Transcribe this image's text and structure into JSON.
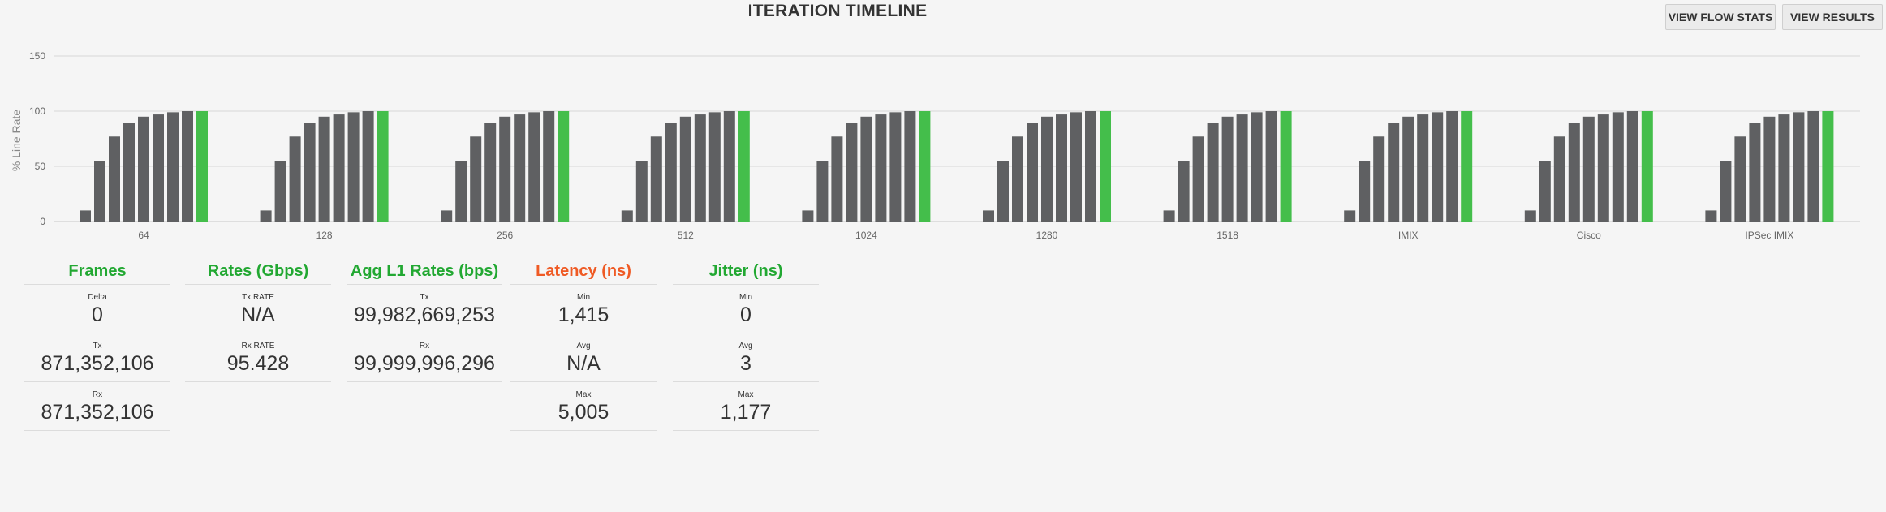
{
  "header": {
    "title": "ITERATION TIMELINE",
    "view_flow_stats_label": "VIEW FLOW STATS",
    "view_results_label": "VIEW RESULTS"
  },
  "colors": {
    "bar": "#5f6062",
    "bar_final": "#44be4b",
    "grid": "#d8d8d8",
    "heading_green": "#22a832",
    "heading_orange": "#ef5a24"
  },
  "chart_data": {
    "type": "bar",
    "ylabel": "% Line Rate",
    "ylim": [
      0,
      150
    ],
    "yticks": [
      0,
      50,
      100,
      150
    ],
    "grid": true,
    "groups": [
      {
        "label": "64",
        "values": [
          10,
          55,
          77,
          89,
          95,
          97,
          99,
          100,
          100
        ]
      },
      {
        "label": "128",
        "values": [
          10,
          55,
          77,
          89,
          95,
          97,
          99,
          100,
          100
        ]
      },
      {
        "label": "256",
        "values": [
          10,
          55,
          77,
          89,
          95,
          97,
          99,
          100,
          100
        ]
      },
      {
        "label": "512",
        "values": [
          10,
          55,
          77,
          89,
          95,
          97,
          99,
          100,
          100
        ]
      },
      {
        "label": "1024",
        "values": [
          10,
          55,
          77,
          89,
          95,
          97,
          99,
          100,
          100
        ]
      },
      {
        "label": "1280",
        "values": [
          10,
          55,
          77,
          89,
          95,
          97,
          99,
          100,
          100
        ]
      },
      {
        "label": "1518",
        "values": [
          10,
          55,
          77,
          89,
          95,
          97,
          99,
          100,
          100
        ]
      },
      {
        "label": "IMIX",
        "values": [
          10,
          55,
          77,
          89,
          95,
          97,
          99,
          100,
          100
        ]
      },
      {
        "label": "Cisco",
        "values": [
          10,
          55,
          77,
          89,
          95,
          97,
          99,
          100,
          100
        ]
      },
      {
        "label": "IPSec IMIX",
        "values": [
          10,
          55,
          77,
          89,
          95,
          97,
          99,
          100,
          100
        ]
      }
    ]
  },
  "stats": {
    "frames": {
      "title": "Frames",
      "rows": [
        {
          "label": "Delta",
          "value": "0"
        },
        {
          "label": "Tx",
          "value": "871,352,106"
        },
        {
          "label": "Rx",
          "value": "871,352,106"
        }
      ]
    },
    "rates": {
      "title": "Rates (Gbps)",
      "rows": [
        {
          "label": "Tx RATE",
          "value": "N/A"
        },
        {
          "label": "Rx RATE",
          "value": "95.428"
        }
      ]
    },
    "agg_l1": {
      "title": "Agg L1 Rates (bps)",
      "rows": [
        {
          "label": "Tx",
          "value": "99,982,669,253"
        },
        {
          "label": "Rx",
          "value": "99,999,996,296"
        }
      ]
    },
    "latency": {
      "title": "Latency (ns)",
      "rows": [
        {
          "label": "Min",
          "value": "1,415"
        },
        {
          "label": "Avg",
          "value": "N/A"
        },
        {
          "label": "Max",
          "value": "5,005"
        }
      ]
    },
    "jitter": {
      "title": "Jitter (ns)",
      "rows": [
        {
          "label": "Min",
          "value": "0"
        },
        {
          "label": "Avg",
          "value": "3"
        },
        {
          "label": "Max",
          "value": "1,177"
        }
      ]
    }
  }
}
